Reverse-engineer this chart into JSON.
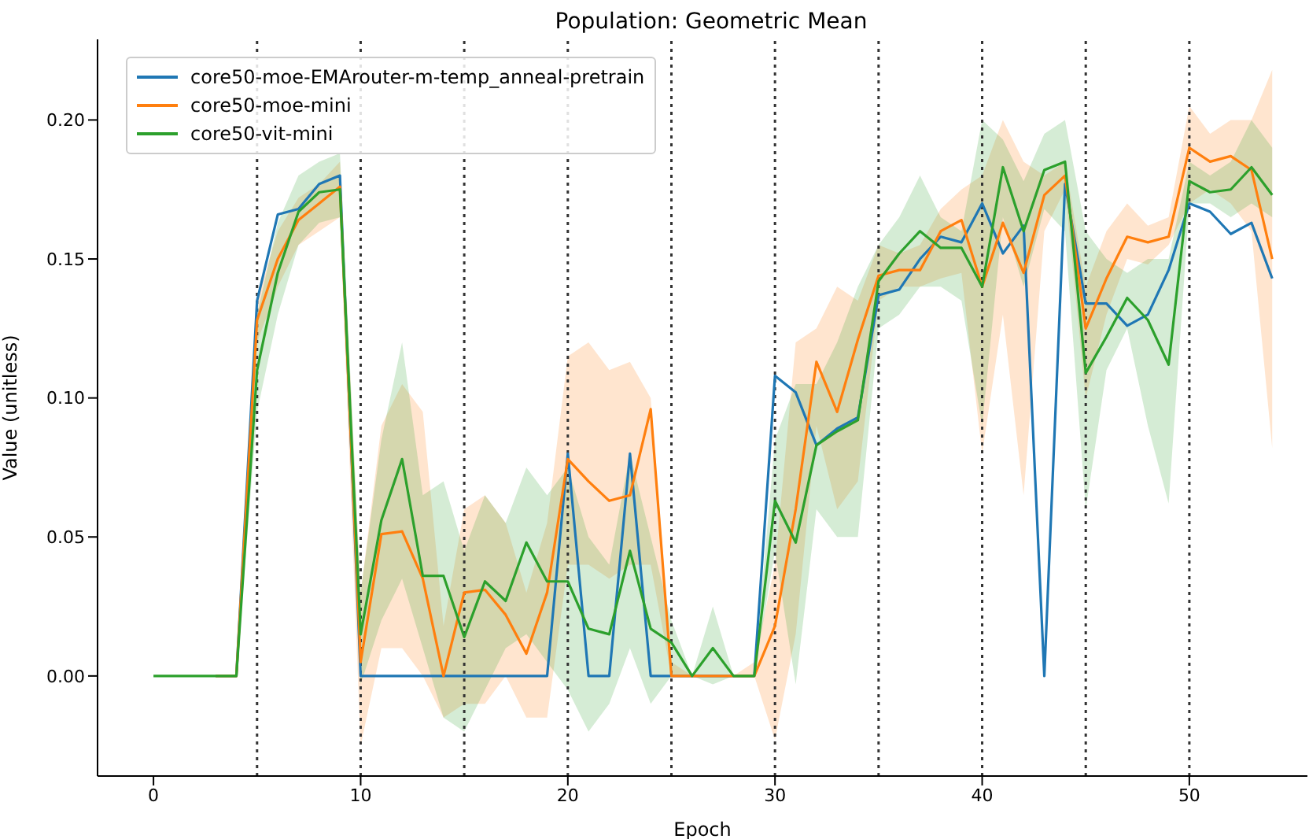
{
  "chart_data": {
    "type": "line",
    "title": "Population: Geometric Mean",
    "xlabel": "Epoch",
    "ylabel": "Value (unitless)",
    "x": [
      0,
      1,
      2,
      3,
      4,
      5,
      6,
      7,
      8,
      9,
      10,
      11,
      12,
      13,
      14,
      15,
      16,
      17,
      18,
      19,
      20,
      21,
      22,
      23,
      24,
      25,
      26,
      27,
      28,
      29,
      30,
      31,
      32,
      33,
      34,
      35,
      36,
      37,
      38,
      39,
      40,
      41,
      42,
      43,
      44,
      45,
      46,
      47,
      48,
      49,
      50,
      51,
      52,
      53,
      54
    ],
    "series": [
      {
        "name": "core50-moe-EMArouter-m-temp_anneal-pretrain",
        "color": "#1f77b4",
        "values": [
          null,
          null,
          null,
          0,
          0,
          0.135,
          0.166,
          0.168,
          0.177,
          0.18,
          0,
          0,
          0,
          0,
          0,
          0,
          0,
          0,
          0,
          0,
          0.08,
          0,
          0,
          0.08,
          0,
          0,
          0,
          0,
          0,
          0,
          0.108,
          0.102,
          0.083,
          0.089,
          0.093,
          0.137,
          0.139,
          0.15,
          0.158,
          0.156,
          0.17,
          0.152,
          0.162,
          0,
          0.177,
          0.134,
          0.134,
          0.126,
          0.13,
          0.146,
          0.17,
          0.167,
          0.159,
          0.163,
          0.143
        ]
      },
      {
        "name": "core50-moe-mini",
        "color": "#ff7f0e",
        "values": [
          null,
          null,
          null,
          0,
          0,
          0.128,
          0.15,
          0.164,
          0.17,
          0.176,
          0.005,
          0.051,
          0.052,
          0.035,
          0,
          0.03,
          0.031,
          0.022,
          0.008,
          0.03,
          0.078,
          0.07,
          0.063,
          0.065,
          0.096,
          0,
          0,
          0,
          0,
          0,
          0.018,
          0.06,
          0.113,
          0.095,
          0.121,
          0.144,
          0.146,
          0.146,
          0.16,
          0.164,
          0.14,
          0.163,
          0.145,
          0.173,
          0.18,
          0.125,
          0.143,
          0.158,
          0.156,
          0.158,
          0.19,
          0.185,
          0.187,
          0.182,
          0.15
        ],
        "lower": [
          0,
          0,
          0,
          0,
          0,
          0.12,
          0.14,
          0.155,
          0.16,
          0.165,
          -0.025,
          0.01,
          0.01,
          0,
          -0.015,
          -0.01,
          -0.01,
          0,
          -0.015,
          -0.015,
          0.04,
          0.04,
          0.035,
          0.04,
          0.04,
          0,
          0,
          0,
          0,
          0,
          -0.023,
          0.015,
          0.09,
          0.06,
          0.07,
          0.135,
          0.14,
          0.14,
          0.143,
          0.145,
          0.08,
          0.13,
          0.065,
          0.16,
          0.175,
          0.1,
          0.13,
          0.15,
          0.148,
          0.155,
          0.17,
          0.175,
          0.17,
          0.16,
          0.082
        ],
        "upper": [
          0,
          0,
          0,
          0,
          0,
          0.135,
          0.16,
          0.172,
          0.177,
          0.185,
          0.03,
          0.09,
          0.105,
          0.095,
          0.018,
          0.06,
          0.065,
          0.055,
          0.03,
          0.055,
          0.115,
          0.12,
          0.11,
          0.113,
          0.1,
          0.005,
          0,
          0,
          0,
          0.005,
          0.04,
          0.12,
          0.125,
          0.14,
          0.135,
          0.155,
          0.152,
          0.155,
          0.168,
          0.175,
          0.18,
          0.2,
          0.185,
          0.18,
          0.185,
          0.14,
          0.16,
          0.17,
          0.162,
          0.165,
          0.205,
          0.195,
          0.2,
          0.2,
          0.218
        ]
      },
      {
        "name": "core50-vit-mini",
        "color": "#2ca02c",
        "values": [
          0,
          0,
          0,
          0,
          0,
          0.11,
          0.145,
          0.167,
          0.174,
          0.175,
          0.015,
          0.056,
          0.078,
          0.036,
          0.036,
          0.014,
          0.034,
          0.027,
          0.048,
          0.034,
          0.034,
          0.017,
          0.015,
          0.045,
          0.017,
          0.012,
          0,
          0.01,
          0,
          0,
          0.063,
          0.048,
          0.083,
          0.088,
          0.092,
          0.142,
          0.152,
          0.16,
          0.154,
          0.154,
          0.14,
          0.183,
          0.16,
          0.182,
          0.185,
          0.109,
          0.122,
          0.136,
          0.128,
          0.112,
          0.178,
          0.174,
          0.175,
          0.183,
          0.173
        ],
        "lower": [
          0,
          0,
          0,
          0,
          0,
          0.095,
          0.13,
          0.155,
          0.163,
          0.165,
          -0.003,
          0.02,
          0.035,
          0.01,
          -0.015,
          -0.02,
          -0.005,
          0.01,
          0.015,
          0.005,
          -0.005,
          -0.02,
          -0.01,
          0.01,
          -0.01,
          0,
          0,
          -0.003,
          0,
          0,
          0.045,
          -0.003,
          0.06,
          0.05,
          0.05,
          0.125,
          0.13,
          0.14,
          0.14,
          0.135,
          0.09,
          0.165,
          0.14,
          0.168,
          0.16,
          0.06,
          0.11,
          0.125,
          0.09,
          0.062,
          0.17,
          0.17,
          0.165,
          0.17,
          0.165
        ],
        "upper": [
          0,
          0,
          0,
          0,
          0,
          0.13,
          0.163,
          0.18,
          0.185,
          0.188,
          0.03,
          0.085,
          0.12,
          0.065,
          0.07,
          0.045,
          0.065,
          0.055,
          0.075,
          0.065,
          0.075,
          0.05,
          0.04,
          0.08,
          0.05,
          0.02,
          0,
          0.025,
          0,
          0,
          0.085,
          0.105,
          0.105,
          0.12,
          0.14,
          0.155,
          0.165,
          0.18,
          0.165,
          0.16,
          0.2,
          0.193,
          0.178,
          0.195,
          0.2,
          0.16,
          0.15,
          0.145,
          0.15,
          0.15,
          0.185,
          0.18,
          0.185,
          0.2,
          0.19
        ]
      }
    ],
    "ref_lines": [
      {
        "axis": "x",
        "value": 5,
        "color": "#333333",
        "line_style": "dotted"
      },
      {
        "axis": "x",
        "value": 10,
        "color": "#333333",
        "line_style": "dotted"
      },
      {
        "axis": "x",
        "value": 15,
        "color": "#333333",
        "line_style": "dotted"
      },
      {
        "axis": "x",
        "value": 20,
        "color": "#333333",
        "line_style": "dotted"
      },
      {
        "axis": "x",
        "value": 25,
        "color": "#333333",
        "line_style": "dotted"
      },
      {
        "axis": "x",
        "value": 30,
        "color": "#333333",
        "line_style": "dotted"
      },
      {
        "axis": "x",
        "value": 35,
        "color": "#333333",
        "line_style": "dotted"
      },
      {
        "axis": "x",
        "value": 40,
        "color": "#333333",
        "line_style": "dotted"
      },
      {
        "axis": "x",
        "value": 45,
        "color": "#333333",
        "line_style": "dotted"
      },
      {
        "axis": "x",
        "value": 50,
        "color": "#333333",
        "line_style": "dotted"
      }
    ],
    "xlim": [
      -2.7,
      55.7
    ],
    "ylim": [
      -0.036,
      0.229
    ],
    "xticks": [
      0,
      10,
      20,
      30,
      40,
      50
    ],
    "yticks": [
      {
        "value": 0,
        "label": "0.00"
      },
      {
        "value": 0.05,
        "label": "0.05"
      },
      {
        "value": 0.1,
        "label": "0.10"
      },
      {
        "value": 0.15,
        "label": "0.15"
      },
      {
        "value": 0.2,
        "label": "0.20"
      }
    ],
    "grid": false,
    "legend": "top left",
    "marker": "none",
    "line_style": "solid"
  }
}
